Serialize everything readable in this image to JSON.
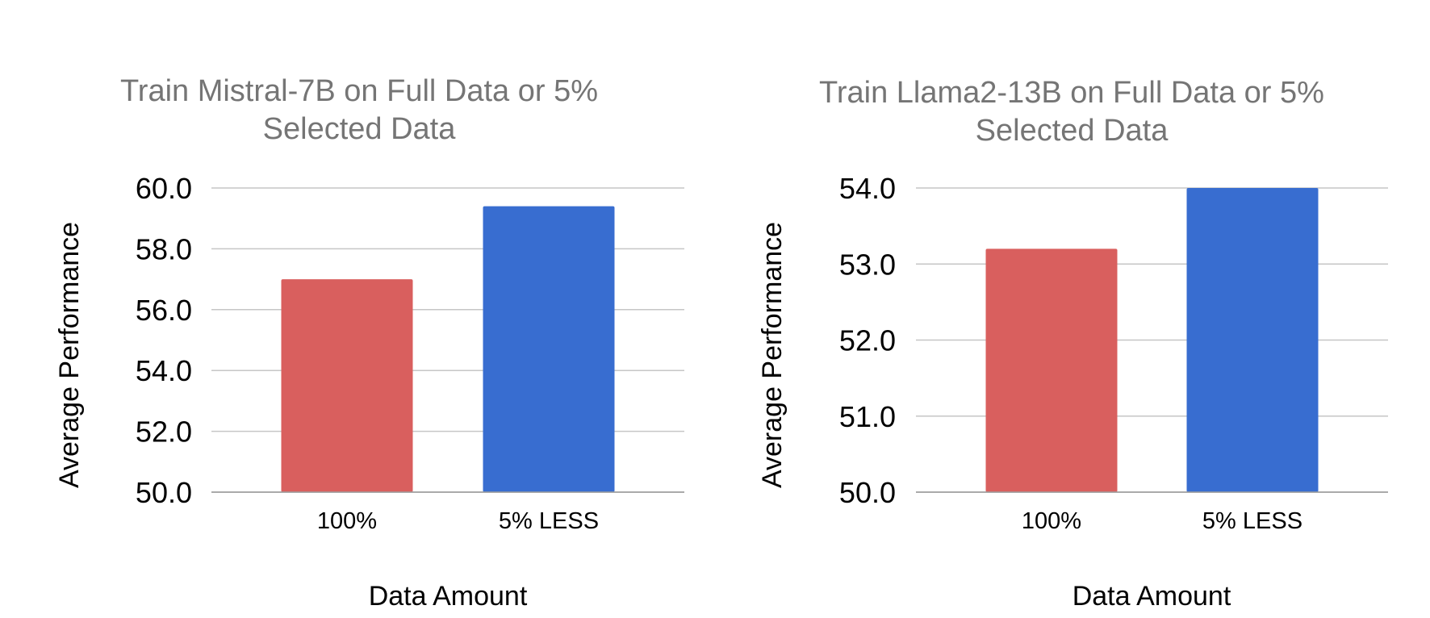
{
  "chart_data": [
    {
      "type": "bar",
      "title_lines": [
        "Train Mistral-7B on Full Data or 5%",
        "Selected Data"
      ],
      "xlabel": "Data Amount",
      "ylabel": "Average Performance",
      "categories": [
        "100%",
        "5% LESS"
      ],
      "values": [
        57.0,
        59.4
      ],
      "bar_colors": [
        "#d95f5e",
        "#386dd0"
      ],
      "ylim": [
        50.0,
        60.0
      ],
      "yticks": [
        "50.0",
        "52.0",
        "54.0",
        "56.0",
        "58.0",
        "60.0"
      ],
      "grid": true,
      "legend": "none"
    },
    {
      "type": "bar",
      "title_lines": [
        "Train Llama2-13B on Full Data or 5%",
        "Selected Data"
      ],
      "xlabel": "Data Amount",
      "ylabel": "Average Performance",
      "categories": [
        "100%",
        "5% LESS"
      ],
      "values": [
        53.2,
        54.0
      ],
      "bar_colors": [
        "#d95f5e",
        "#386dd0"
      ],
      "ylim": [
        50.0,
        54.0
      ],
      "yticks": [
        "50.0",
        "51.0",
        "52.0",
        "53.0",
        "54.0"
      ],
      "grid": true,
      "legend": "none"
    }
  ]
}
